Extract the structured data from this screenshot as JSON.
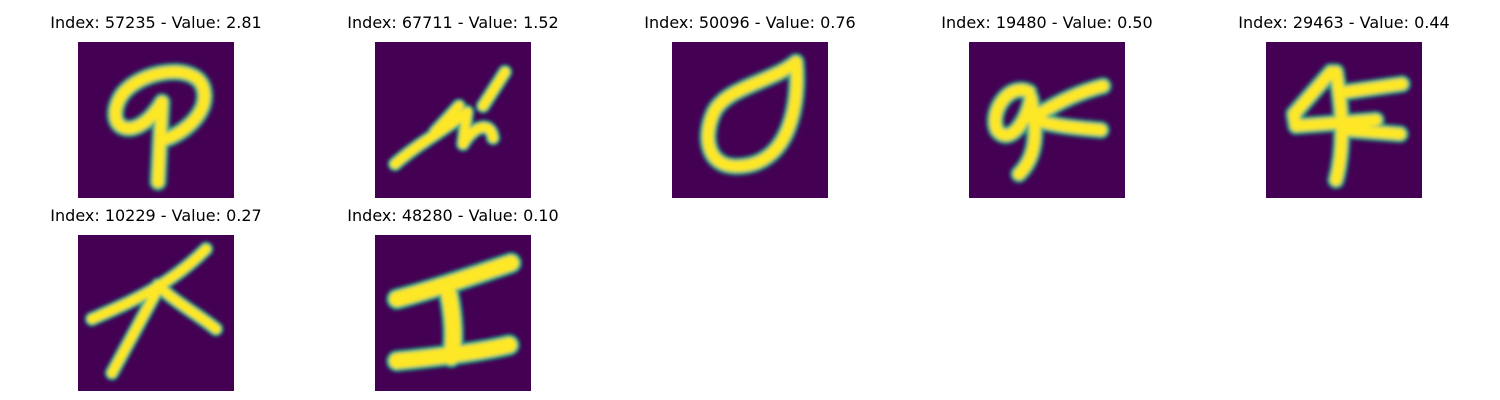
{
  "panels": [
    {
      "title": "Index: 57235 - Value: 2.81",
      "glyph": "looped-p-like-character"
    },
    {
      "title": "Index: 67711 - Value: 1.52",
      "glyph": "zigzag-stroke"
    },
    {
      "title": "Index: 50096 - Value: 0.76",
      "glyph": "oval-zero-shape"
    },
    {
      "title": "Index: 19480 - Value: 0.50",
      "glyph": "nine-with-cross-stroke"
    },
    {
      "title": "Index: 29463 - Value: 0.44",
      "glyph": "four-with-cross-stroke"
    },
    {
      "title": "Index: 10229 - Value: 0.27",
      "glyph": "x-like-strokes"
    },
    {
      "title": "Index: 48280 - Value: 0.10",
      "glyph": "i-beam-character"
    }
  ],
  "colors": {
    "background": "#440154",
    "stroke": "#fde725",
    "edge": "#22a884"
  }
}
